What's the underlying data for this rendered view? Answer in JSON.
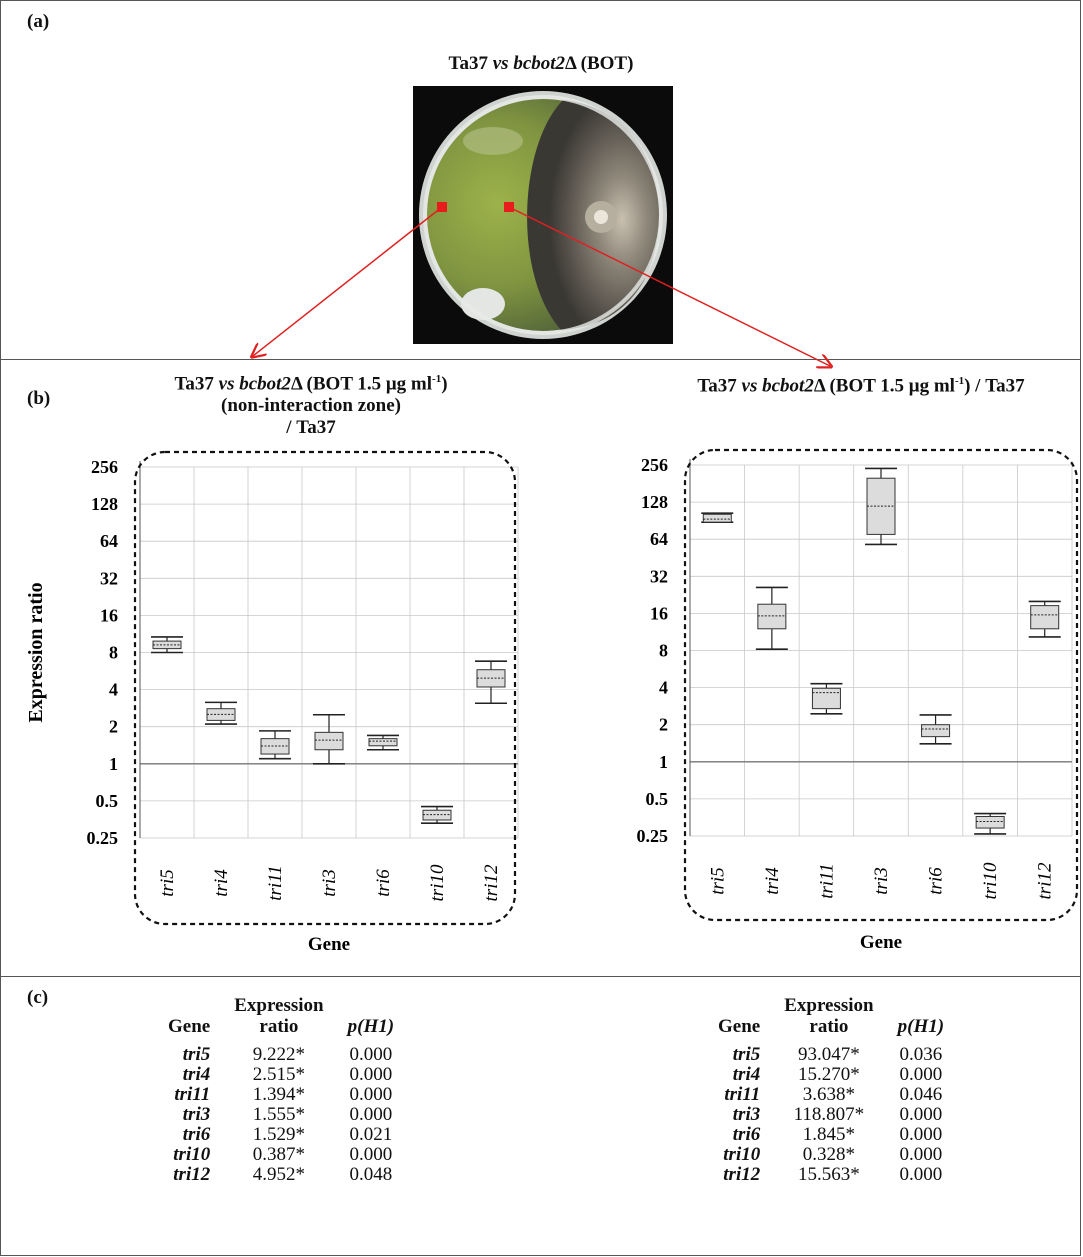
{
  "panel_a": {
    "label": "(a)",
    "title_prefix": "Ta37 ",
    "title_vs": "vs",
    "title_strain": " bcbot2",
    "title_suffix": "Δ (BOT)"
  },
  "panel_b": {
    "label": "(b)",
    "left_title": {
      "prefix": "Ta37 ",
      "vs": "vs",
      "strain": " bcbot2",
      "mid": "Δ (BOT 1.5 μg ml",
      "sup": "-1",
      "end": ")",
      "line2": "(non-interaction zone)",
      "line3": "/ Ta37"
    },
    "right_title": {
      "prefix": "Ta37 ",
      "vs": "vs",
      "strain": " bcbot2",
      "mid": "Δ (BOT 1.5 μg ml",
      "sup": "-1",
      "end": ") / Ta37"
    }
  },
  "chart_data": [
    {
      "type": "box",
      "title": "Ta37 vs bcbot2Δ (BOT 1.5 μg ml-1) (non-interaction zone) / Ta37",
      "xlabel": "Gene",
      "ylabel": "Expression ratio",
      "yscale": "log2",
      "ylim": [
        0.25,
        256
      ],
      "yticks": [
        0.25,
        0.5,
        1,
        2,
        4,
        8,
        16,
        32,
        64,
        128,
        256
      ],
      "ytick_labels": [
        "0.25",
        "0.5",
        "1",
        "2",
        "4",
        "8",
        "16",
        "32",
        "64",
        "128",
        "256"
      ],
      "reference_line": 1,
      "grid": true,
      "categories": [
        "tri5",
        "tri4",
        "tri11",
        "tri3",
        "tri6",
        "tri10",
        "tri12"
      ],
      "boxes": [
        {
          "min": 8.0,
          "q1": 8.6,
          "median": 9.222,
          "q3": 9.9,
          "max": 10.7
        },
        {
          "min": 2.1,
          "q1": 2.25,
          "median": 2.515,
          "q3": 2.8,
          "max": 3.15
        },
        {
          "min": 1.1,
          "q1": 1.2,
          "median": 1.394,
          "q3": 1.6,
          "max": 1.85
        },
        {
          "min": 1.0,
          "q1": 1.3,
          "median": 1.555,
          "q3": 1.8,
          "max": 2.5
        },
        {
          "min": 1.3,
          "q1": 1.4,
          "median": 1.529,
          "q3": 1.6,
          "max": 1.7
        },
        {
          "min": 0.33,
          "q1": 0.35,
          "median": 0.387,
          "q3": 0.42,
          "max": 0.45
        },
        {
          "min": 3.1,
          "q1": 4.2,
          "median": 4.952,
          "q3": 5.8,
          "max": 6.8
        }
      ]
    },
    {
      "type": "box",
      "title": "Ta37 vs bcbot2Δ (BOT 1.5 μg ml-1) / Ta37",
      "xlabel": "Gene",
      "ylabel": "",
      "yscale": "log2",
      "ylim": [
        0.25,
        256
      ],
      "yticks": [
        0.25,
        0.5,
        1,
        2,
        4,
        8,
        16,
        32,
        64,
        128,
        256
      ],
      "ytick_labels": [
        "0.25",
        "0.5",
        "1",
        "2",
        "4",
        "8",
        "16",
        "32",
        "64",
        "128",
        "256"
      ],
      "reference_line": 1,
      "grid": true,
      "categories": [
        "tri5",
        "tri4",
        "tri11",
        "tri3",
        "tri6",
        "tri10",
        "tri12"
      ],
      "boxes": [
        {
          "min": 88,
          "q1": 88,
          "median": 93.047,
          "q3": 102,
          "max": 104
        },
        {
          "min": 8.2,
          "q1": 12,
          "median": 15.27,
          "q3": 19,
          "max": 26
        },
        {
          "min": 2.45,
          "q1": 2.7,
          "median": 3.638,
          "q3": 3.95,
          "max": 4.3
        },
        {
          "min": 58,
          "q1": 70,
          "median": 118.807,
          "q3": 200,
          "max": 240
        },
        {
          "min": 1.4,
          "q1": 1.6,
          "median": 1.845,
          "q3": 2.0,
          "max": 2.4
        },
        {
          "min": 0.26,
          "q1": 0.29,
          "median": 0.328,
          "q3": 0.36,
          "max": 0.38
        },
        {
          "min": 10.3,
          "q1": 12,
          "median": 15.563,
          "q3": 18.5,
          "max": 20
        }
      ]
    }
  ],
  "panel_c": {
    "label": "(c)",
    "headers": {
      "gene": "Gene",
      "ratio_line1": "Expression",
      "ratio_line2": "ratio",
      "p": "p(H1)"
    },
    "left_rows": [
      {
        "gene": "tri5",
        "ratio": "9.222*",
        "p": "0.000"
      },
      {
        "gene": "tri4",
        "ratio": "2.515*",
        "p": "0.000"
      },
      {
        "gene": "tri11",
        "ratio": "1.394*",
        "p": "0.000"
      },
      {
        "gene": "tri3",
        "ratio": "1.555*",
        "p": "0.000"
      },
      {
        "gene": "tri6",
        "ratio": "1.529*",
        "p": "0.021"
      },
      {
        "gene": "tri10",
        "ratio": "0.387*",
        "p": "0.000"
      },
      {
        "gene": "tri12",
        "ratio": "4.952*",
        "p": "0.048"
      }
    ],
    "right_rows": [
      {
        "gene": "tri5",
        "ratio": "93.047*",
        "p": "0.036"
      },
      {
        "gene": "tri4",
        "ratio": "15.270*",
        "p": "0.000"
      },
      {
        "gene": "tri11",
        "ratio": "3.638*",
        "p": "0.046"
      },
      {
        "gene": "tri3",
        "ratio": "118.807*",
        "p": "0.000"
      },
      {
        "gene": "tri6",
        "ratio": "1.845*",
        "p": "0.000"
      },
      {
        "gene": "tri10",
        "ratio": "0.328*",
        "p": "0.000"
      },
      {
        "gene": "tri12",
        "ratio": "15.563*",
        "p": "0.000"
      }
    ]
  }
}
